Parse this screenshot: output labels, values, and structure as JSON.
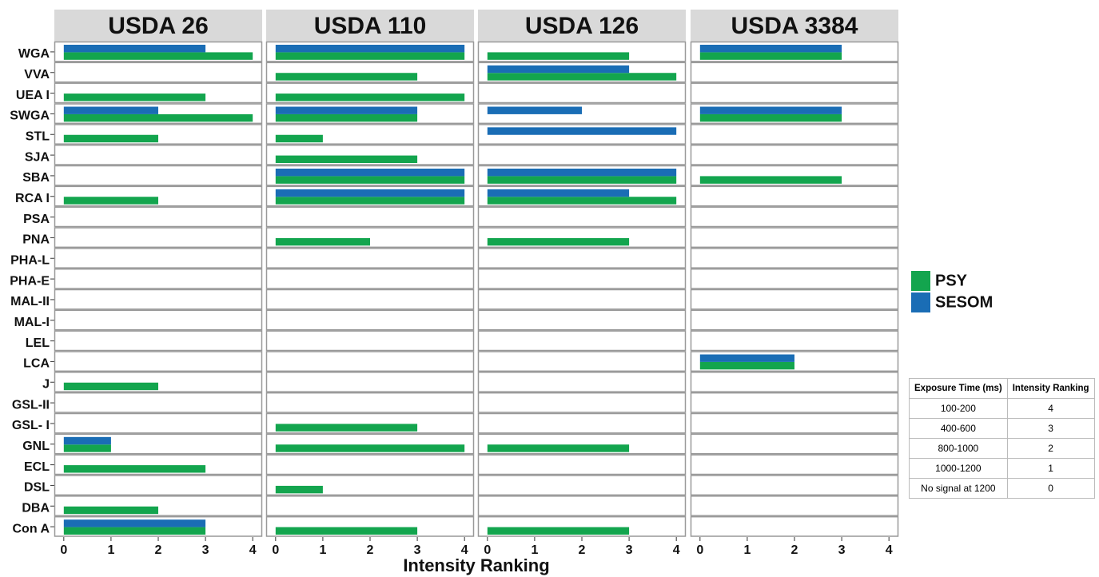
{
  "chart_data": {
    "type": "bar",
    "orientation": "horizontal",
    "xlabel": "Intensity Ranking",
    "categories": [
      "WGA",
      "VVA",
      "UEA I",
      "SWGA",
      "STL",
      "SJA",
      "SBA",
      "RCA I",
      "PSA",
      "PNA",
      "PHA-L",
      "PHA-E",
      "MAL-II",
      "MAL-I",
      "LEL",
      "LCA",
      "J",
      "GSL-II",
      "GSL- I",
      "GNL",
      "ECL",
      "DSL",
      "DBA",
      "Con A"
    ],
    "xlim": [
      -0.2,
      4.2
    ],
    "xticks": [
      0,
      1,
      2,
      3,
      4
    ],
    "facets": [
      {
        "title": "USDA 26",
        "series": [
          {
            "name": "PSY",
            "color": "#13a54e",
            "values": [
              4,
              0,
              3,
              4,
              2,
              0,
              0,
              2,
              0,
              0,
              0,
              0,
              0,
              0,
              0,
              0,
              2,
              0,
              0,
              1,
              3,
              0,
              2,
              3
            ]
          },
          {
            "name": "SESOM",
            "color": "#1a6db5",
            "values": [
              3,
              0,
              0,
              2,
              0,
              0,
              0,
              0,
              0,
              0,
              0,
              0,
              0,
              0,
              0,
              0,
              0,
              0,
              0,
              1,
              0,
              0,
              0,
              3
            ]
          }
        ]
      },
      {
        "title": "USDA 110",
        "series": [
          {
            "name": "PSY",
            "color": "#13a54e",
            "values": [
              4,
              3,
              4,
              3,
              1,
              3,
              4,
              4,
              0,
              2,
              0,
              0,
              0,
              0,
              0,
              0,
              0,
              0,
              3,
              4,
              0,
              1,
              0,
              3
            ]
          },
          {
            "name": "SESOM",
            "color": "#1a6db5",
            "values": [
              4,
              0,
              0,
              3,
              0,
              0,
              4,
              4,
              0,
              0,
              0,
              0,
              0,
              0,
              0,
              0,
              0,
              0,
              0,
              0,
              0,
              0,
              0,
              0
            ]
          }
        ]
      },
      {
        "title": "USDA 126",
        "series": [
          {
            "name": "PSY",
            "color": "#13a54e",
            "values": [
              3,
              4,
              0,
              0,
              0,
              0,
              4,
              4,
              0,
              3,
              0,
              0,
              0,
              0,
              0,
              0,
              0,
              0,
              0,
              3,
              0,
              0,
              0,
              3
            ]
          },
          {
            "name": "SESOM",
            "color": "#1a6db5",
            "values": [
              0,
              3,
              0,
              2,
              4,
              0,
              4,
              3,
              0,
              0,
              0,
              0,
              0,
              0,
              0,
              0,
              0,
              0,
              0,
              0,
              0,
              0,
              0,
              0
            ]
          }
        ]
      },
      {
        "title": "USDA 3384",
        "series": [
          {
            "name": "PSY",
            "color": "#13a54e",
            "values": [
              3,
              0,
              0,
              3,
              0,
              0,
              3,
              0,
              0,
              0,
              0,
              0,
              0,
              0,
              0,
              2,
              0,
              0,
              0,
              0,
              0,
              0,
              0,
              0
            ]
          },
          {
            "name": "SESOM",
            "color": "#1a6db5",
            "values": [
              3,
              0,
              0,
              3,
              0,
              0,
              0,
              0,
              0,
              0,
              0,
              0,
              0,
              0,
              0,
              2,
              0,
              0,
              0,
              0,
              0,
              0,
              0,
              0
            ]
          }
        ]
      }
    ]
  },
  "table": {
    "header": [
      "Exposure Time (ms)",
      "Intensity Ranking"
    ],
    "rows": [
      [
        "100-200",
        4
      ],
      [
        "400-600",
        3
      ],
      [
        "800-1000",
        2
      ],
      [
        "1000-1200",
        1
      ],
      [
        "No signal at 1200",
        0
      ]
    ]
  }
}
